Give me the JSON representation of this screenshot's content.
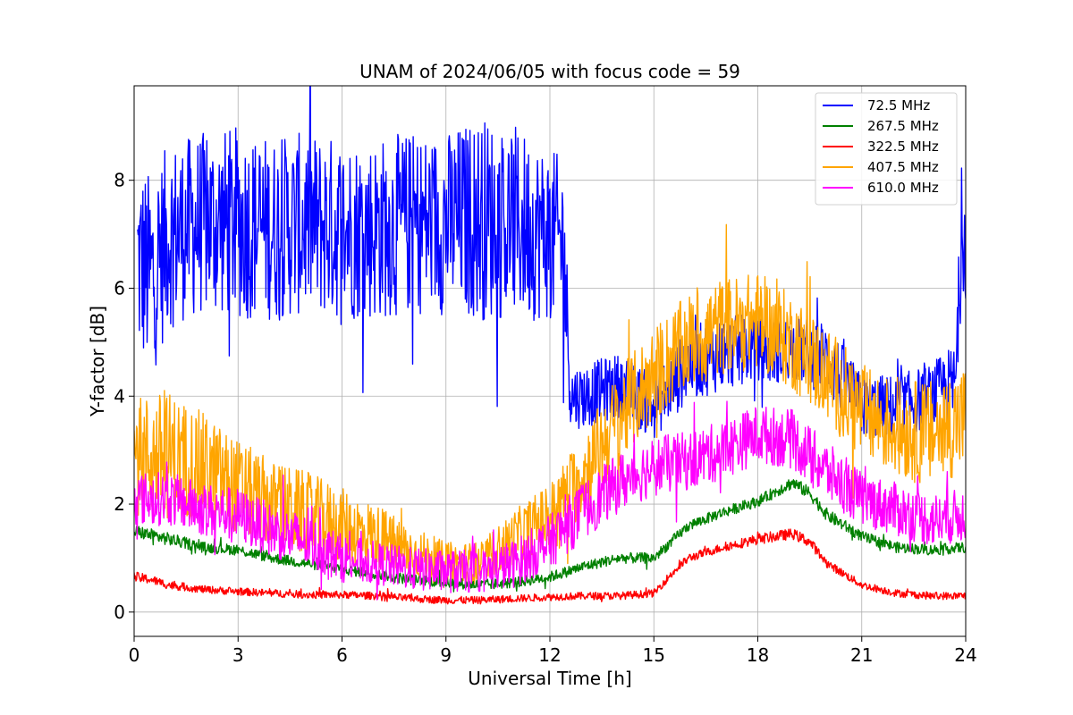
{
  "chart_data": {
    "type": "line",
    "title": "UNAM of 2024/06/05 with focus code = 59",
    "xlabel": "Universal Time [h]",
    "ylabel": "Y-factor [dB]",
    "xlim": [
      0,
      24
    ],
    "ylim": [
      -0.45,
      9.75
    ],
    "xticks": [
      0,
      3,
      6,
      9,
      12,
      15,
      18,
      21,
      24
    ],
    "xtick_labels": [
      "0",
      "3",
      "6",
      "9",
      "12",
      "15",
      "18",
      "21",
      "24"
    ],
    "yticks": [
      0,
      2,
      4,
      6,
      8
    ],
    "ytick_labels": [
      "0",
      "2",
      "4",
      "6",
      "8"
    ],
    "grid": true,
    "legend_position": "top-right",
    "series": [
      {
        "name": " 72.5 MHz",
        "color": "#0000ff",
        "x": [
          0.1,
          0.5,
          1,
          2,
          3,
          4,
          5,
          6,
          7,
          8,
          9,
          10,
          11,
          12,
          12.4,
          12.6,
          13,
          14,
          15,
          16,
          17,
          18,
          18.3,
          19,
          20,
          21,
          22,
          23,
          23.7,
          23.9,
          24
        ],
        "y": [
          6.5,
          6.2,
          7.0,
          7.2,
          7.2,
          7.1,
          7.2,
          7.1,
          7.1,
          7.2,
          7.2,
          7.3,
          7.2,
          7.0,
          6.8,
          4.0,
          4.0,
          4.2,
          3.8,
          4.6,
          4.8,
          4.9,
          4.8,
          4.9,
          4.7,
          3.8,
          3.8,
          4.0,
          4.2,
          7.2,
          7.0
        ],
        "amp": [
          1.9,
          1.9,
          1.7,
          1.7,
          1.8,
          1.7,
          1.7,
          1.7,
          1.7,
          1.7,
          1.7,
          1.9,
          1.8,
          1.6,
          1.6,
          0.6,
          0.6,
          0.6,
          0.6,
          0.7,
          0.7,
          0.6,
          0.6,
          0.6,
          0.7,
          0.6,
          0.6,
          0.6,
          0.8,
          1.2,
          1.2
        ]
      },
      {
        "name": "267.5 MHz",
        "color": "#008000",
        "x": [
          0,
          1,
          2,
          3,
          4,
          5,
          6,
          7,
          8,
          9,
          10,
          11,
          12,
          13,
          14,
          15,
          15.5,
          16,
          17,
          18,
          19,
          19.5,
          20,
          21,
          22,
          23,
          24
        ],
        "y": [
          1.5,
          1.35,
          1.2,
          1.15,
          1.0,
          0.9,
          0.8,
          0.7,
          0.6,
          0.55,
          0.5,
          0.55,
          0.65,
          0.85,
          1.0,
          1.0,
          1.3,
          1.6,
          1.85,
          2.05,
          2.4,
          2.2,
          1.8,
          1.4,
          1.2,
          1.15,
          1.2
        ],
        "amp": [
          0.12,
          0.12,
          0.1,
          0.1,
          0.1,
          0.1,
          0.1,
          0.1,
          0.1,
          0.1,
          0.1,
          0.1,
          0.1,
          0.1,
          0.1,
          0.1,
          0.1,
          0.1,
          0.1,
          0.1,
          0.12,
          0.12,
          0.12,
          0.1,
          0.1,
          0.1,
          0.1
        ]
      },
      {
        "name": "322.5 MHz",
        "color": "#ff0000",
        "x": [
          0,
          0.5,
          1,
          2,
          3,
          4,
          5,
          6,
          7,
          8,
          9,
          10,
          11,
          12,
          13,
          14,
          15,
          15.5,
          16,
          17,
          18,
          19,
          19.5,
          20,
          21,
          22,
          23,
          24
        ],
        "y": [
          0.65,
          0.6,
          0.5,
          0.42,
          0.38,
          0.35,
          0.32,
          0.32,
          0.3,
          0.25,
          0.22,
          0.22,
          0.25,
          0.28,
          0.3,
          0.3,
          0.35,
          0.7,
          1.0,
          1.2,
          1.35,
          1.45,
          1.3,
          0.9,
          0.5,
          0.35,
          0.3,
          0.3
        ],
        "amp": [
          0.1,
          0.08,
          0.08,
          0.07,
          0.07,
          0.07,
          0.07,
          0.07,
          0.07,
          0.07,
          0.07,
          0.07,
          0.07,
          0.07,
          0.07,
          0.07,
          0.07,
          0.08,
          0.08,
          0.08,
          0.1,
          0.1,
          0.1,
          0.08,
          0.07,
          0.07,
          0.07,
          0.07
        ]
      },
      {
        "name": "407.5 MHz",
        "color": "#ffa500",
        "x": [
          0,
          1,
          2,
          3,
          4,
          5,
          6,
          7,
          8,
          9,
          10,
          11,
          12,
          13,
          14,
          15,
          16,
          17,
          18,
          19,
          20,
          21,
          22,
          23,
          24
        ],
        "y": [
          2.9,
          2.9,
          2.7,
          2.3,
          2.0,
          1.8,
          1.6,
          1.4,
          1.1,
          0.9,
          0.9,
          1.4,
          1.8,
          2.6,
          3.6,
          4.4,
          5.0,
          5.3,
          5.4,
          5.0,
          4.4,
          3.7,
          3.4,
          3.3,
          3.6
        ],
        "amp": [
          1.1,
          1.2,
          1.0,
          0.9,
          0.8,
          0.8,
          0.7,
          0.6,
          0.5,
          0.4,
          0.4,
          0.5,
          0.6,
          0.8,
          0.9,
          0.9,
          0.9,
          0.9,
          0.9,
          0.9,
          0.9,
          0.9,
          0.9,
          1.0,
          1.0
        ]
      },
      {
        "name": "610.0 MHz",
        "color": "#ff00ff",
        "x": [
          0,
          1,
          2,
          3,
          4,
          5,
          6,
          7,
          8,
          9,
          10,
          11,
          12,
          13,
          14,
          15,
          16,
          17,
          18,
          19,
          20,
          21,
          22,
          23,
          24
        ],
        "y": [
          2.1,
          2.1,
          1.9,
          1.8,
          1.5,
          1.3,
          1.0,
          0.9,
          0.8,
          0.75,
          0.75,
          0.9,
          1.3,
          1.9,
          2.4,
          2.7,
          2.8,
          3.0,
          3.3,
          3.2,
          2.6,
          2.1,
          1.9,
          1.7,
          1.8
        ],
        "amp": [
          0.5,
          0.5,
          0.5,
          0.5,
          0.5,
          0.5,
          0.45,
          0.4,
          0.4,
          0.4,
          0.4,
          0.45,
          0.5,
          0.55,
          0.55,
          0.55,
          0.55,
          0.55,
          0.55,
          0.55,
          0.55,
          0.5,
          0.5,
          0.5,
          0.5
        ]
      }
    ]
  }
}
